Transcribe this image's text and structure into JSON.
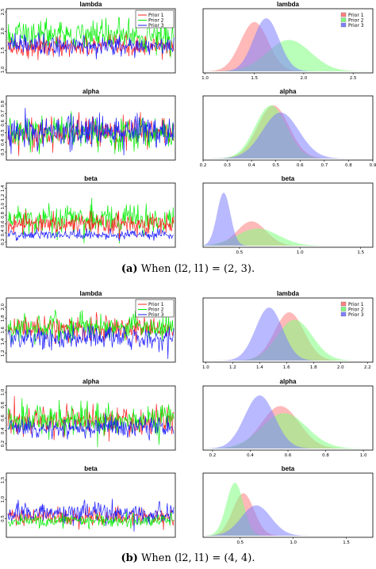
{
  "captions": {
    "a_label": "(a)",
    "a_text": "When (l2, l1) = (2, 3).",
    "b_label": "(b)",
    "b_text": "When (l2, l1) = (4, 4)."
  },
  "colors": {
    "prior1": "#ff2020",
    "prior2": "#00ee00",
    "prior3": "#1a1aff",
    "density1": "#ff8080",
    "density2": "#80ff80",
    "density3": "#8080ff"
  },
  "chart_data": [
    {
      "type": "line",
      "panel": "a-trace-lambda",
      "title": "lambda",
      "legend": [
        "Prior 1",
        "Prior 2",
        "Prior 3"
      ],
      "legend_position": "top-right",
      "y_ticks": [
        "1.0",
        "1.5",
        "2.0",
        "2.5"
      ],
      "ylim": [
        1.0,
        2.5
      ],
      "series": [
        {
          "name": "Prior 1",
          "mean": 1.6,
          "sd": 0.14
        },
        {
          "name": "Prior 2",
          "mean": 1.9,
          "sd": 0.2
        },
        {
          "name": "Prior 3",
          "mean": 1.62,
          "sd": 0.12
        }
      ]
    },
    {
      "type": "area",
      "panel": "a-density-lambda",
      "title": "lambda",
      "legend": [
        "Prior 1",
        "Prior 2",
        "Prior 3"
      ],
      "legend_position": "top-right",
      "x_ticks": [
        "1.0",
        "1.5",
        "2.0",
        "2.5"
      ],
      "xlim": [
        0.98,
        2.7
      ],
      "series": [
        {
          "name": "Prior 1",
          "mean": 1.5,
          "sd": 0.14
        },
        {
          "name": "Prior 2",
          "mean": 1.85,
          "sd": 0.22
        },
        {
          "name": "Prior 3",
          "mean": 1.62,
          "sd": 0.13
        }
      ]
    },
    {
      "type": "line",
      "panel": "a-trace-alpha",
      "title": "alpha",
      "y_ticks": [
        "0.3",
        "0.4",
        "0.5",
        "0.6",
        "0.7",
        "0.8"
      ],
      "ylim": [
        0.25,
        0.85
      ],
      "series": [
        {
          "name": "Prior 1",
          "mean": 0.5,
          "sd": 0.08
        },
        {
          "name": "Prior 2",
          "mean": 0.49,
          "sd": 0.08
        },
        {
          "name": "Prior 3",
          "mean": 0.52,
          "sd": 0.09
        }
      ]
    },
    {
      "type": "area",
      "panel": "a-density-alpha",
      "title": "alpha",
      "x_ticks": [
        "0.2",
        "0.3",
        "0.4",
        "0.5",
        "0.6",
        "0.7",
        "0.8",
        "0.9"
      ],
      "xlim": [
        0.2,
        0.9
      ],
      "series": [
        {
          "name": "Prior 1",
          "mean": 0.49,
          "sd": 0.065
        },
        {
          "name": "Prior 2",
          "mean": 0.48,
          "sd": 0.065
        },
        {
          "name": "Prior 3",
          "mean": 0.52,
          "sd": 0.075
        }
      ]
    },
    {
      "type": "line",
      "panel": "a-trace-beta",
      "title": "beta",
      "y_ticks": [
        "0.2",
        "0.4",
        "0.6",
        "0.8",
        "1.0",
        "1.2",
        "1.4"
      ],
      "ylim": [
        0.15,
        1.45
      ],
      "series": [
        {
          "name": "Prior 2",
          "mean": 0.7,
          "sd": 0.16
        },
        {
          "name": "Prior 1",
          "mean": 0.6,
          "sd": 0.12
        },
        {
          "name": "Prior 3",
          "mean": 0.36,
          "sd": 0.05
        }
      ]
    },
    {
      "type": "area",
      "panel": "a-density-beta",
      "title": "beta",
      "x_ticks": [
        "0.5",
        "1.0",
        "1.5"
      ],
      "xlim": [
        0.2,
        1.6
      ],
      "series": [
        {
          "name": "Prior 1",
          "mean": 0.6,
          "sd": 0.12
        },
        {
          "name": "Prior 2",
          "mean": 0.65,
          "sd": 0.17
        },
        {
          "name": "Prior 3",
          "mean": 0.37,
          "sd": 0.055
        }
      ]
    },
    {
      "type": "line",
      "panel": "b-trace-lambda",
      "title": "lambda",
      "legend": [
        "Prior 1",
        "Prior 2",
        "Prior 3"
      ],
      "legend_position": "top-right",
      "y_ticks": [
        "1.2",
        "1.4",
        "1.6",
        "1.8",
        "2.0"
      ],
      "ylim": [
        1.1,
        2.1
      ],
      "series": [
        {
          "name": "Prior 1",
          "mean": 1.62,
          "sd": 0.1
        },
        {
          "name": "Prior 2",
          "mean": 1.66,
          "sd": 0.11
        },
        {
          "name": "Prior 3",
          "mean": 1.46,
          "sd": 0.1
        }
      ]
    },
    {
      "type": "area",
      "panel": "b-density-lambda",
      "title": "lambda",
      "legend": [
        "Prior 1",
        "Prior 2",
        "Prior 3"
      ],
      "legend_position": "top-right",
      "x_ticks": [
        "1.0",
        "1.2",
        "1.4",
        "1.6",
        "1.8",
        "2.0",
        "2.2"
      ],
      "xlim": [
        0.98,
        2.24
      ],
      "series": [
        {
          "name": "Prior 1",
          "mean": 1.62,
          "sd": 0.11
        },
        {
          "name": "Prior 2",
          "mean": 1.66,
          "sd": 0.13
        },
        {
          "name": "Prior 3",
          "mean": 1.47,
          "sd": 0.1
        }
      ]
    },
    {
      "type": "line",
      "panel": "b-trace-alpha",
      "title": "alpha",
      "y_ticks": [
        "0.2",
        "0.4",
        "0.6",
        "0.8",
        "1.0"
      ],
      "ylim": [
        0.15,
        1.05
      ],
      "series": [
        {
          "name": "Prior 1",
          "mean": 0.56,
          "sd": 0.11
        },
        {
          "name": "Prior 2",
          "mean": 0.58,
          "sd": 0.12
        },
        {
          "name": "Prior 3",
          "mean": 0.45,
          "sd": 0.08
        }
      ]
    },
    {
      "type": "area",
      "panel": "b-density-alpha",
      "title": "alpha",
      "x_ticks": [
        "0.2",
        "0.4",
        "0.6",
        "0.8",
        "1.0"
      ],
      "xlim": [
        0.15,
        1.05
      ],
      "series": [
        {
          "name": "Prior 1",
          "mean": 0.56,
          "sd": 0.1
        },
        {
          "name": "Prior 2",
          "mean": 0.58,
          "sd": 0.12
        },
        {
          "name": "Prior 3",
          "mean": 0.45,
          "sd": 0.08
        }
      ]
    },
    {
      "type": "line",
      "panel": "b-trace-beta",
      "title": "beta",
      "y_ticks": [
        "0.5",
        "1.0",
        "1.5"
      ],
      "ylim": [
        0.1,
        1.6
      ],
      "series": [
        {
          "name": "Prior 1",
          "mean": 0.55,
          "sd": 0.11
        },
        {
          "name": "Prior 3",
          "mean": 0.65,
          "sd": 0.14
        },
        {
          "name": "Prior 2",
          "mean": 0.45,
          "sd": 0.08
        }
      ]
    },
    {
      "type": "area",
      "panel": "b-density-beta",
      "title": "beta",
      "x_ticks": [
        "0.5",
        "1.0",
        "1.5"
      ],
      "xlim": [
        0.15,
        1.75
      ],
      "series": [
        {
          "name": "Prior 1",
          "mean": 0.53,
          "sd": 0.1
        },
        {
          "name": "Prior 2",
          "mean": 0.45,
          "sd": 0.08
        },
        {
          "name": "Prior 3",
          "mean": 0.65,
          "sd": 0.14
        }
      ]
    }
  ]
}
